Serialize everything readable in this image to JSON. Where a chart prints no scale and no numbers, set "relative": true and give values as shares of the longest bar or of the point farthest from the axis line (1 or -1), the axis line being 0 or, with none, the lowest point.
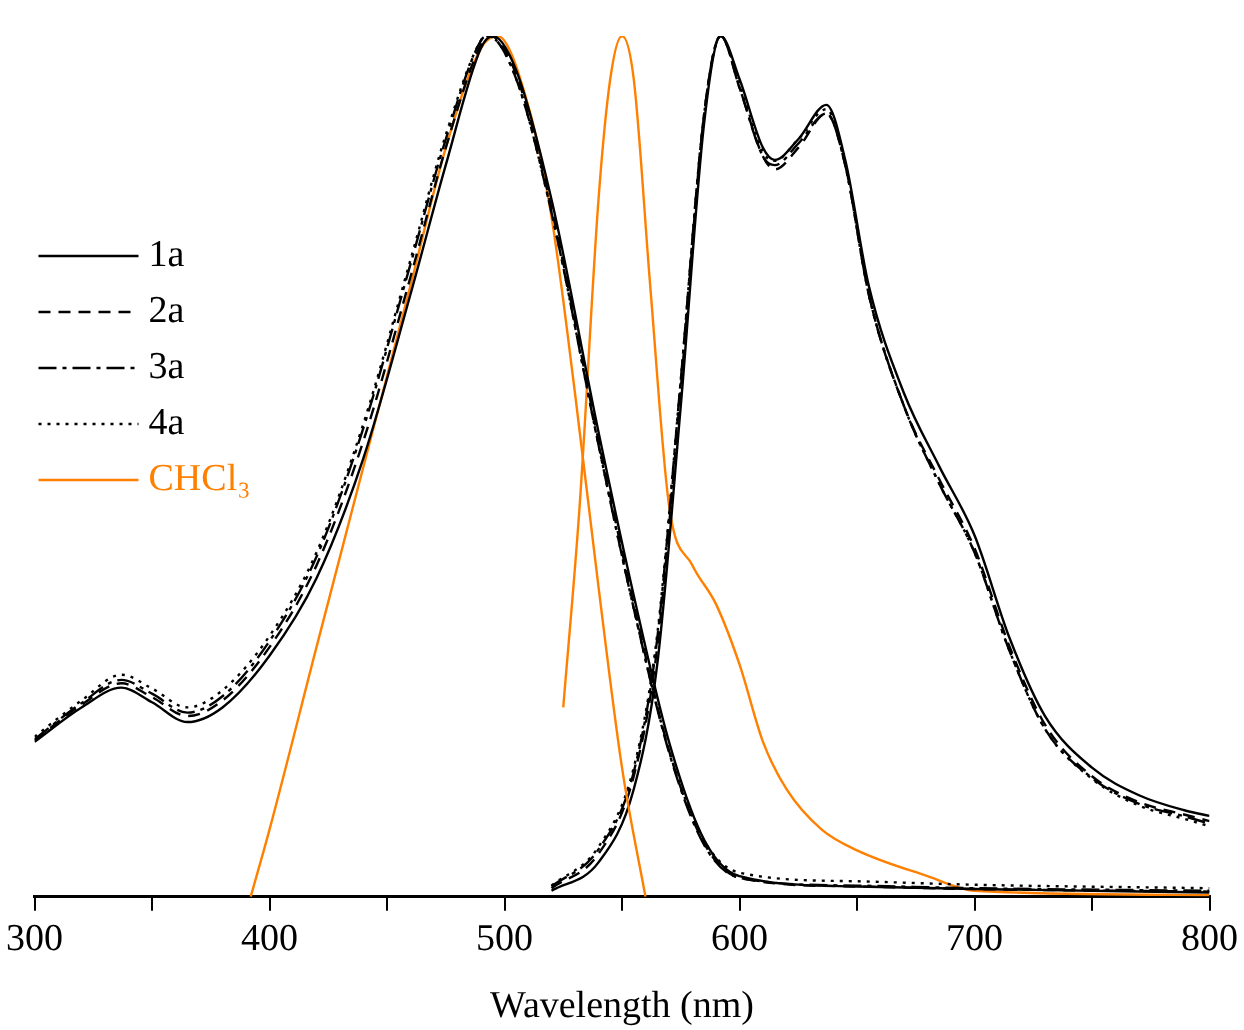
{
  "chart_data": {
    "type": "line",
    "relative": true,
    "xlabel": "Wavelength (nm)",
    "xlim": [
      300,
      800
    ],
    "xticks": [
      300,
      {
        "value": 350,
        "label": null
      },
      400,
      {
        "value": 450,
        "label": null
      },
      500,
      {
        "value": 550,
        "label": null
      },
      600,
      {
        "value": 650,
        "label": null
      },
      700,
      {
        "value": 750,
        "label": null
      },
      800
    ],
    "grid": false,
    "legend": "left",
    "marker": "none",
    "series": [
      {
        "name": "1a",
        "color": "#000000",
        "line_style": "solid",
        "x": [
          300,
          320,
          337,
          350,
          365,
          380,
          400,
          420,
          440,
          460,
          475,
          490,
          495,
          505,
          520,
          540,
          555,
          570,
          585,
          600,
          650,
          700,
          800
        ],
        "values": [
          0.18,
          0.22,
          0.243,
          0.226,
          0.203,
          0.22,
          0.28,
          0.37,
          0.51,
          0.7,
          0.85,
          0.986,
          1,
          0.96,
          0.81,
          0.54,
          0.35,
          0.18,
          0.066,
          0.024,
          0.012,
          0.009,
          0.005
        ]
      },
      {
        "name": "2a",
        "color": "#000000",
        "line_style": "dashed",
        "x": [
          300,
          320,
          337,
          350,
          365,
          380,
          400,
          420,
          440,
          460,
          475,
          490,
          494,
          505,
          520,
          540,
          555,
          570,
          585,
          600,
          650,
          700,
          800
        ],
        "values": [
          0.182,
          0.223,
          0.248,
          0.232,
          0.21,
          0.228,
          0.29,
          0.385,
          0.53,
          0.72,
          0.87,
          0.99,
          1,
          0.955,
          0.8,
          0.53,
          0.34,
          0.17,
          0.062,
          0.022,
          0.012,
          0.009,
          0.006
        ]
      },
      {
        "name": "3a",
        "color": "#000000",
        "line_style": "dashdot",
        "x": [
          300,
          320,
          337,
          350,
          365,
          380,
          400,
          420,
          440,
          460,
          475,
          490,
          493,
          505,
          520,
          540,
          555,
          570,
          585,
          600,
          650,
          700,
          800
        ],
        "values": [
          0.183,
          0.225,
          0.252,
          0.236,
          0.214,
          0.233,
          0.297,
          0.395,
          0.545,
          0.735,
          0.88,
          0.995,
          1,
          0.95,
          0.795,
          0.525,
          0.335,
          0.168,
          0.06,
          0.022,
          0.013,
          0.01,
          0.007
        ]
      },
      {
        "name": "4a",
        "color": "#000000",
        "line_style": "dotted",
        "x": [
          300,
          320,
          337,
          350,
          365,
          380,
          400,
          420,
          440,
          460,
          475,
          490,
          493,
          505,
          520,
          540,
          555,
          570,
          585,
          600,
          650,
          700,
          800
        ],
        "values": [
          0.186,
          0.228,
          0.258,
          0.242,
          0.22,
          0.24,
          0.303,
          0.4,
          0.55,
          0.74,
          0.885,
          0.995,
          1,
          0.95,
          0.795,
          0.525,
          0.335,
          0.17,
          0.065,
          0.028,
          0.018,
          0.014,
          0.01
        ]
      },
      {
        "name": "CHCl₃",
        "color": "#ff8000",
        "line_style": "solid",
        "x": [
          392,
          400,
          420,
          440,
          460,
          475,
          490,
          497,
          510,
          520,
          530,
          540,
          550,
          560
        ],
        "values": [
          0,
          0.078,
          0.29,
          0.5,
          0.71,
          0.87,
          0.986,
          1,
          0.92,
          0.79,
          0.585,
          0.36,
          0.15,
          0
        ]
      },
      {
        "color": "#000000",
        "line_style": "solid",
        "x": [
          520,
          540,
          555,
          565,
          575,
          585,
          592,
          600,
          610,
          615,
          625,
          637,
          645,
          655,
          670,
          685,
          700,
          715,
          730,
          750,
          770,
          790,
          800
        ],
        "values": [
          0.007,
          0.04,
          0.125,
          0.27,
          0.57,
          0.9,
          1,
          0.95,
          0.87,
          0.856,
          0.88,
          0.92,
          0.856,
          0.71,
          0.585,
          0.5,
          0.42,
          0.3,
          0.21,
          0.15,
          0.118,
          0.1,
          0.094
        ]
      },
      {
        "color": "#000000",
        "line_style": "dashed",
        "x": [
          520,
          540,
          555,
          565,
          575,
          585,
          592,
          600,
          610,
          615,
          625,
          637,
          645,
          655,
          670,
          685,
          700,
          715,
          730,
          750,
          770,
          790,
          800
        ],
        "values": [
          0.01,
          0.05,
          0.14,
          0.29,
          0.59,
          0.91,
          1,
          0.94,
          0.86,
          0.845,
          0.87,
          0.91,
          0.85,
          0.7,
          0.57,
          0.485,
          0.405,
          0.29,
          0.2,
          0.14,
          0.11,
          0.095,
          0.088
        ]
      },
      {
        "color": "#000000",
        "line_style": "dashdot",
        "x": [
          520,
          540,
          555,
          565,
          575,
          585,
          592,
          600,
          610,
          615,
          625,
          637,
          645,
          655,
          670,
          685,
          700,
          715,
          730,
          750,
          770,
          790,
          800
        ],
        "values": [
          0.012,
          0.055,
          0.145,
          0.3,
          0.6,
          0.91,
          1,
          0.94,
          0.86,
          0.85,
          0.875,
          0.91,
          0.85,
          0.7,
          0.57,
          0.48,
          0.4,
          0.285,
          0.195,
          0.138,
          0.108,
          0.093,
          0.085
        ]
      },
      {
        "color": "#000000",
        "line_style": "dotted",
        "x": [
          520,
          540,
          555,
          565,
          575,
          585,
          592,
          600,
          610,
          615,
          625,
          637,
          645,
          655,
          670,
          685,
          700,
          715,
          730,
          750,
          770,
          790,
          800
        ],
        "values": [
          0.013,
          0.058,
          0.15,
          0.305,
          0.6,
          0.91,
          1,
          0.945,
          0.865,
          0.855,
          0.88,
          0.915,
          0.85,
          0.7,
          0.57,
          0.48,
          0.4,
          0.285,
          0.195,
          0.137,
          0.106,
          0.09,
          0.082
        ]
      },
      {
        "color": "#ff8000",
        "line_style": "solid",
        "x": [
          525,
          532,
          540,
          545,
          550,
          555,
          562,
          570,
          580,
          590,
          600,
          610,
          620,
          635,
          650,
          680,
          700,
          800
        ],
        "values": [
          0.22,
          0.455,
          0.81,
          0.95,
          1,
          0.95,
          0.71,
          0.455,
          0.385,
          0.34,
          0.27,
          0.18,
          0.125,
          0.078,
          0.054,
          0.024,
          0.007,
          0.002
        ]
      }
    ]
  }
}
